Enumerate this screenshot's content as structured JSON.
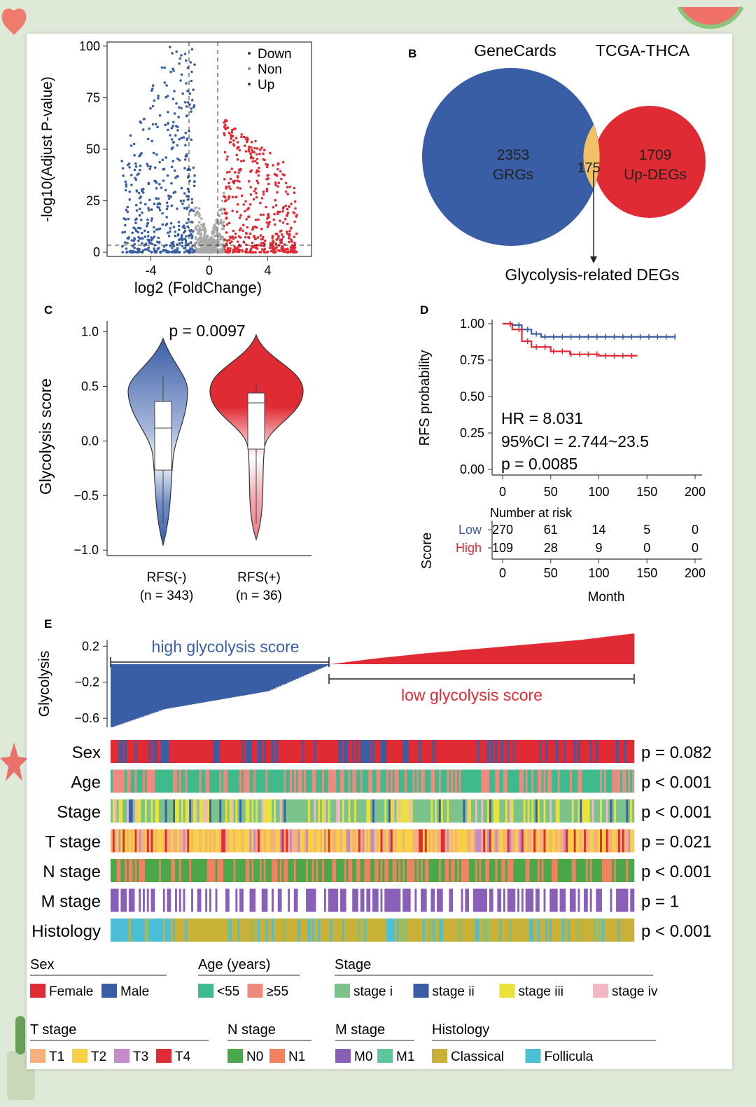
{
  "theme": {
    "blue": "#3a5ea6",
    "red": "#e02a34",
    "grey": "#a9a9a9",
    "orange": "#f2c066",
    "background": "#dfe9d8"
  },
  "panelA": {
    "ylabel": "-log10(Adjust P-value)",
    "xlabel": "log2 (FoldChange)",
    "legend": [
      "Down",
      "Non",
      "Up"
    ]
  },
  "panelB": {
    "letter": "B",
    "set1_title": "GeneCards",
    "set2_title": "TCGA-THCA",
    "set1_count": "2353",
    "set1_name": "GRGs",
    "overlap": "175",
    "set2_count": "1709",
    "set2_name": "Up-DEGs",
    "caption": "Glycolysis-related DEGs"
  },
  "panelC": {
    "letter": "C",
    "ylabel": "Glycolysis score",
    "pvalue": "p = 0.0097",
    "groups": [
      {
        "name": "RFS(-)",
        "n": "(n = 343)"
      },
      {
        "name": "RFS(+)",
        "n": "(n = 36)"
      }
    ]
  },
  "panelD": {
    "letter": "D",
    "ylabel": "RFS probability",
    "hr": "HR = 8.031",
    "ci": "95%CI = 2.744~23.5",
    "pvalue": "p = 0.0085",
    "risk_title": "Number at risk",
    "score_label": "Score",
    "xlabel": "Month",
    "risk_rows": [
      {
        "label": "Low",
        "values": [
          "270",
          "61",
          "14",
          "5",
          "0"
        ]
      },
      {
        "label": "High",
        "values": [
          "109",
          "28",
          "9",
          "0",
          "0"
        ]
      }
    ]
  },
  "panelE": {
    "letter": "E",
    "ylabel": "Glycolysis",
    "high_label": "high glycolysis score",
    "low_label": "low glycolysis score",
    "tracks": [
      {
        "name": "Sex",
        "p": "p = 0.082"
      },
      {
        "name": "Age",
        "p": "p < 0.001"
      },
      {
        "name": "Stage",
        "p": "p < 0.001"
      },
      {
        "name": "T stage",
        "p": "p = 0.021"
      },
      {
        "name": "N stage",
        "p": "p < 0.001"
      },
      {
        "name": "M stage",
        "p": "p = 1"
      },
      {
        "name": "Histology",
        "p": "p < 0.001"
      }
    ]
  },
  "legends": {
    "sex": {
      "title": "Sex",
      "items": [
        [
          "Female",
          "#e02a34"
        ],
        [
          "Male",
          "#3a5ea6"
        ]
      ]
    },
    "age": {
      "title": "Age (years)",
      "items": [
        [
          "<55",
          "#3fba8c"
        ],
        [
          "≥55",
          "#f08a7e"
        ]
      ]
    },
    "stage": {
      "title": "Stage",
      "items": [
        [
          "stage i",
          "#7cc28c"
        ],
        [
          "stage ii",
          "#3a5ea6"
        ],
        [
          "stage iii",
          "#e8e23a"
        ],
        [
          "stage iv",
          "#f4b6c2"
        ]
      ]
    },
    "t_stage": {
      "title": "T stage",
      "items": [
        [
          "T1",
          "#f5b07c"
        ],
        [
          "T2",
          "#f6d046"
        ],
        [
          "T3",
          "#c58ac9"
        ],
        [
          "T4",
          "#e02a34"
        ]
      ]
    },
    "n_stage": {
      "title": "N stage",
      "items": [
        [
          "N0",
          "#4aa84a"
        ],
        [
          "N1",
          "#f08260"
        ]
      ]
    },
    "m_stage": {
      "title": "M stage",
      "items": [
        [
          "M0",
          "#8a5fb8"
        ],
        [
          "M1",
          "#5fc59a"
        ]
      ]
    },
    "histology": {
      "title": "Histology",
      "items": [
        [
          "Classical",
          "#c9b037"
        ],
        [
          "Follicula",
          "#4bbfd6"
        ]
      ]
    }
  },
  "chart_data": [
    {
      "type": "scatter",
      "title": "",
      "xlabel": "log2 (FoldChange)",
      "ylabel": "-log10(Adjust P-value)",
      "xlim": [
        -7,
        7
      ],
      "ylim": [
        -2,
        102
      ],
      "xticks": [
        -4,
        0,
        4
      ],
      "yticks": [
        0,
        25,
        50,
        75,
        100
      ],
      "thresholds": {
        "x": [
          -1,
          1
        ],
        "y": 0
      },
      "series": [
        {
          "name": "Down",
          "color": "#3a5ea6",
          "note": "log2FC < -1"
        },
        {
          "name": "Non",
          "color": "#a9a9a9",
          "note": "|log2FC| <= 1"
        },
        {
          "name": "Up",
          "color": "#e02a34",
          "note": "log2FC > 1"
        }
      ]
    },
    {
      "type": "venn",
      "sets": [
        {
          "name": "GeneCards",
          "label": "GRGs",
          "size": 2353
        },
        {
          "name": "TCGA-THCA",
          "label": "Up-DEGs",
          "size": 1709
        }
      ],
      "intersection": 175
    },
    {
      "type": "violin",
      "ylabel": "Glycolysis score",
      "ylim": [
        -1.05,
        1.1
      ],
      "yticks": [
        -1.0,
        -0.5,
        0.0,
        0.5,
        1.0
      ],
      "categories": [
        "RFS(-)",
        "RFS(+)"
      ],
      "box": [
        {
          "q1": -0.3,
          "median": 0.08,
          "q3": 0.34,
          "min": -0.75,
          "max": 0.55
        },
        {
          "q1": -0.12,
          "median": 0.33,
          "q3": 0.4,
          "min": -0.2,
          "max": 0.5
        }
      ],
      "pvalue": 0.0097
    },
    {
      "type": "line",
      "xlabel": "Month",
      "ylabel": "RFS probability",
      "xlim": [
        0,
        200
      ],
      "ylim": [
        0,
        1.0
      ],
      "xticks": [
        0,
        50,
        100,
        150,
        200
      ],
      "yticks": [
        0.0,
        0.25,
        0.5,
        0.75,
        1.0
      ],
      "series": [
        {
          "name": "Low",
          "color": "#3a5ea6",
          "x": [
            0,
            10,
            20,
            30,
            40,
            60,
            100,
            150,
            180
          ],
          "y": [
            1.0,
            0.99,
            0.96,
            0.93,
            0.91,
            0.91,
            0.91,
            0.91,
            0.91
          ]
        },
        {
          "name": "High",
          "color": "#e02a34",
          "x": [
            0,
            10,
            20,
            30,
            50,
            70,
            100,
            140
          ],
          "y": [
            1.0,
            0.96,
            0.88,
            0.84,
            0.81,
            0.79,
            0.78,
            0.78
          ]
        }
      ],
      "HR": 8.031,
      "CI": [
        2.744,
        23.5
      ],
      "pvalue": 0.0085
    },
    {
      "type": "area",
      "xlabel": "",
      "ylabel": "Glycolysis",
      "yticks": [
        0.2,
        -0.2,
        -0.6
      ],
      "ylim": [
        -0.7,
        0.35
      ],
      "x": [
        0,
        0.1,
        0.2,
        0.3,
        0.42,
        0.5,
        0.6,
        0.7,
        0.8,
        0.9,
        1.0
      ],
      "values": [
        -0.7,
        -0.5,
        -0.4,
        -0.3,
        0.0,
        0.06,
        0.12,
        0.17,
        0.22,
        0.27,
        0.34
      ]
    }
  ]
}
